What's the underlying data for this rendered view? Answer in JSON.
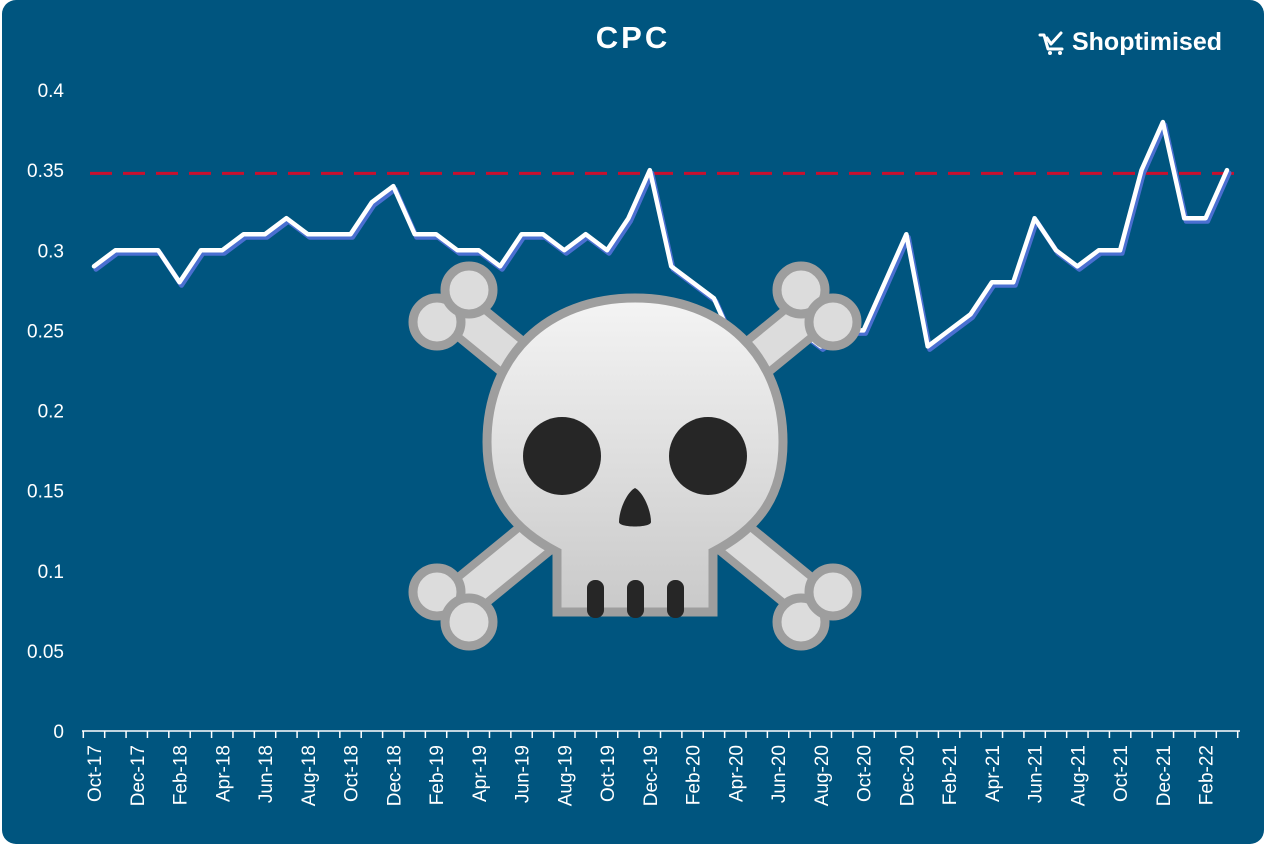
{
  "brand": {
    "name": "Shoptimised",
    "icon": "cart-icon"
  },
  "chart_data": {
    "type": "line",
    "title": "CPC",
    "xlabel": "",
    "ylabel": "",
    "ylim": [
      0,
      0.4
    ],
    "yticks": [
      "0",
      "0.05",
      "0.1",
      "0.15",
      "0.2",
      "0.25",
      "0.3",
      "0.35",
      "0.4"
    ],
    "categories": [
      "Oct-17",
      "Nov-17",
      "Dec-17",
      "Jan-18",
      "Feb-18",
      "Mar-18",
      "Apr-18",
      "May-18",
      "Jun-18",
      "Jul-18",
      "Aug-18",
      "Sep-18",
      "Oct-18",
      "Nov-18",
      "Dec-18",
      "Jan-19",
      "Feb-19",
      "Mar-19",
      "Apr-19",
      "May-19",
      "Jun-19",
      "Jul-19",
      "Aug-19",
      "Sep-19",
      "Oct-19",
      "Nov-19",
      "Dec-19",
      "Jan-20",
      "Feb-20",
      "Mar-20",
      "Apr-20",
      "May-20",
      "Jun-20",
      "Jul-20",
      "Aug-20",
      "Sep-20",
      "Oct-20",
      "Nov-20",
      "Dec-20",
      "Jan-21",
      "Feb-21",
      "Mar-21",
      "Apr-21",
      "May-21",
      "Jun-21",
      "Jul-21",
      "Aug-21",
      "Sep-21",
      "Oct-21",
      "Nov-21",
      "Dec-21",
      "Jan-22",
      "Feb-22",
      "Mar-22"
    ],
    "xtick_labels": [
      "Oct-17",
      "Dec-17",
      "Feb-18",
      "Apr-18",
      "Jun-18",
      "Aug-18",
      "Oct-18",
      "Dec-18",
      "Feb-19",
      "Apr-19",
      "Jun-19",
      "Aug-19",
      "Oct-19",
      "Dec-19",
      "Feb-20",
      "Apr-20",
      "Jun-20",
      "Aug-20",
      "Oct-20",
      "Dec-20",
      "Feb-21",
      "Apr-21",
      "Jun-21",
      "Aug-21",
      "Oct-21",
      "Dec-21",
      "Feb-22"
    ],
    "series": [
      {
        "name": "",
        "values": [
          0.29,
          0.3,
          0.3,
          0.3,
          0.28,
          0.3,
          0.3,
          0.31,
          0.31,
          0.32,
          0.31,
          0.31,
          0.31,
          0.33,
          0.34,
          0.31,
          0.31,
          0.3,
          0.3,
          0.29,
          0.31,
          0.31,
          0.3,
          0.31,
          0.3,
          0.32,
          0.35,
          0.29,
          0.28,
          0.27,
          0.24,
          0.23,
          0.24,
          0.25,
          0.24,
          0.25,
          0.25,
          0.28,
          0.31,
          0.24,
          0.25,
          0.26,
          0.28,
          0.28,
          0.32,
          0.3,
          0.29,
          0.3,
          0.3,
          0.35,
          0.38,
          0.32,
          0.32,
          0.35
        ]
      }
    ],
    "reference_line": {
      "value": 0.348,
      "style": "dashed",
      "color": "#c8102e"
    },
    "colors": {
      "background": "#00557f",
      "line": "#ffffff",
      "line_shadow": "#4a6fd1",
      "drop_lines": "#ffffff"
    },
    "grid": false,
    "overlay_icon": "skull-and-crossbones-icon"
  }
}
